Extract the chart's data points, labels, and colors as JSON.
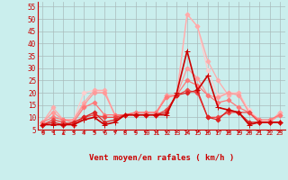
{
  "xlabel": "Vent moyen/en rafales ( km/h )",
  "background_color": "#caeeed",
  "grid_color": "#aabbbb",
  "x_hours": [
    0,
    1,
    2,
    3,
    4,
    5,
    6,
    7,
    8,
    9,
    10,
    11,
    12,
    13,
    14,
    15,
    16,
    17,
    18,
    19,
    20,
    21,
    22,
    23
  ],
  "series": [
    {
      "color": "#cc0000",
      "linewidth": 1.2,
      "marker": "+",
      "markersize": 4,
      "zorder": 10,
      "values": [
        7,
        7,
        7,
        7,
        9,
        10,
        7,
        8,
        11,
        11,
        11,
        11,
        11,
        20,
        37,
        21,
        27,
        14,
        13,
        12,
        7,
        8,
        8,
        8
      ]
    },
    {
      "color": "#dd2222",
      "linewidth": 0.9,
      "marker": "D",
      "markersize": 2.5,
      "zorder": 9,
      "values": [
        7,
        8,
        7,
        8,
        10,
        12,
        8,
        9,
        11,
        11,
        11,
        11,
        12,
        19,
        20,
        21,
        10,
        9,
        13,
        12,
        8,
        8,
        8,
        8
      ]
    },
    {
      "color": "#ee4444",
      "linewidth": 0.9,
      "marker": "D",
      "markersize": 2.5,
      "zorder": 8,
      "values": [
        7,
        9,
        8,
        7,
        10,
        11,
        10,
        10,
        11,
        11,
        11,
        11,
        13,
        19,
        21,
        20,
        10,
        10,
        12,
        12,
        12,
        8,
        8,
        8
      ]
    },
    {
      "color": "#ff7777",
      "linewidth": 0.9,
      "marker": "D",
      "markersize": 2.5,
      "zorder": 7,
      "values": [
        8,
        10,
        9,
        8,
        14,
        16,
        11,
        11,
        11,
        12,
        12,
        12,
        18,
        19,
        25,
        23,
        19,
        16,
        17,
        14,
        12,
        9,
        9,
        11
      ]
    },
    {
      "color": "#ff9999",
      "linewidth": 0.9,
      "marker": "D",
      "markersize": 2.5,
      "zorder": 6,
      "values": [
        8,
        12,
        9,
        9,
        15,
        20,
        20,
        11,
        11,
        12,
        12,
        12,
        19,
        19,
        30,
        26,
        19,
        18,
        20,
        19,
        12,
        8,
        8,
        11
      ]
    },
    {
      "color": "#ffaaaa",
      "linewidth": 0.9,
      "marker": "D",
      "markersize": 2.5,
      "zorder": 5,
      "values": [
        8,
        14,
        9,
        9,
        16,
        21,
        21,
        11,
        11,
        11,
        11,
        11,
        19,
        19,
        52,
        47,
        33,
        25,
        19,
        20,
        12,
        8,
        8,
        12
      ]
    },
    {
      "color": "#ffcccc",
      "linewidth": 0.9,
      "marker": "D",
      "markersize": 2.5,
      "zorder": 4,
      "values": [
        8,
        12,
        9,
        9,
        20,
        21,
        20,
        11,
        11,
        12,
        12,
        12,
        19,
        19,
        52,
        47,
        29,
        19,
        20,
        20,
        13,
        9,
        8,
        12
      ]
    }
  ],
  "ylim": [
    5,
    57
  ],
  "yticks": [
    5,
    10,
    15,
    20,
    25,
    30,
    35,
    40,
    45,
    50,
    55
  ],
  "xticks": [
    0,
    1,
    2,
    3,
    4,
    5,
    6,
    7,
    8,
    9,
    10,
    11,
    12,
    13,
    14,
    15,
    16,
    17,
    18,
    19,
    20,
    21,
    22,
    23
  ],
  "tick_color": "#cc0000",
  "axis_color": "#cc0000",
  "xlabel_color": "#cc0000",
  "arrow_angles_deg": [
    225,
    225,
    180,
    225,
    225,
    225,
    270,
    225,
    270,
    270,
    270,
    225,
    225,
    45,
    90,
    90,
    90,
    135,
    90,
    90,
    90,
    45,
    45,
    45
  ]
}
